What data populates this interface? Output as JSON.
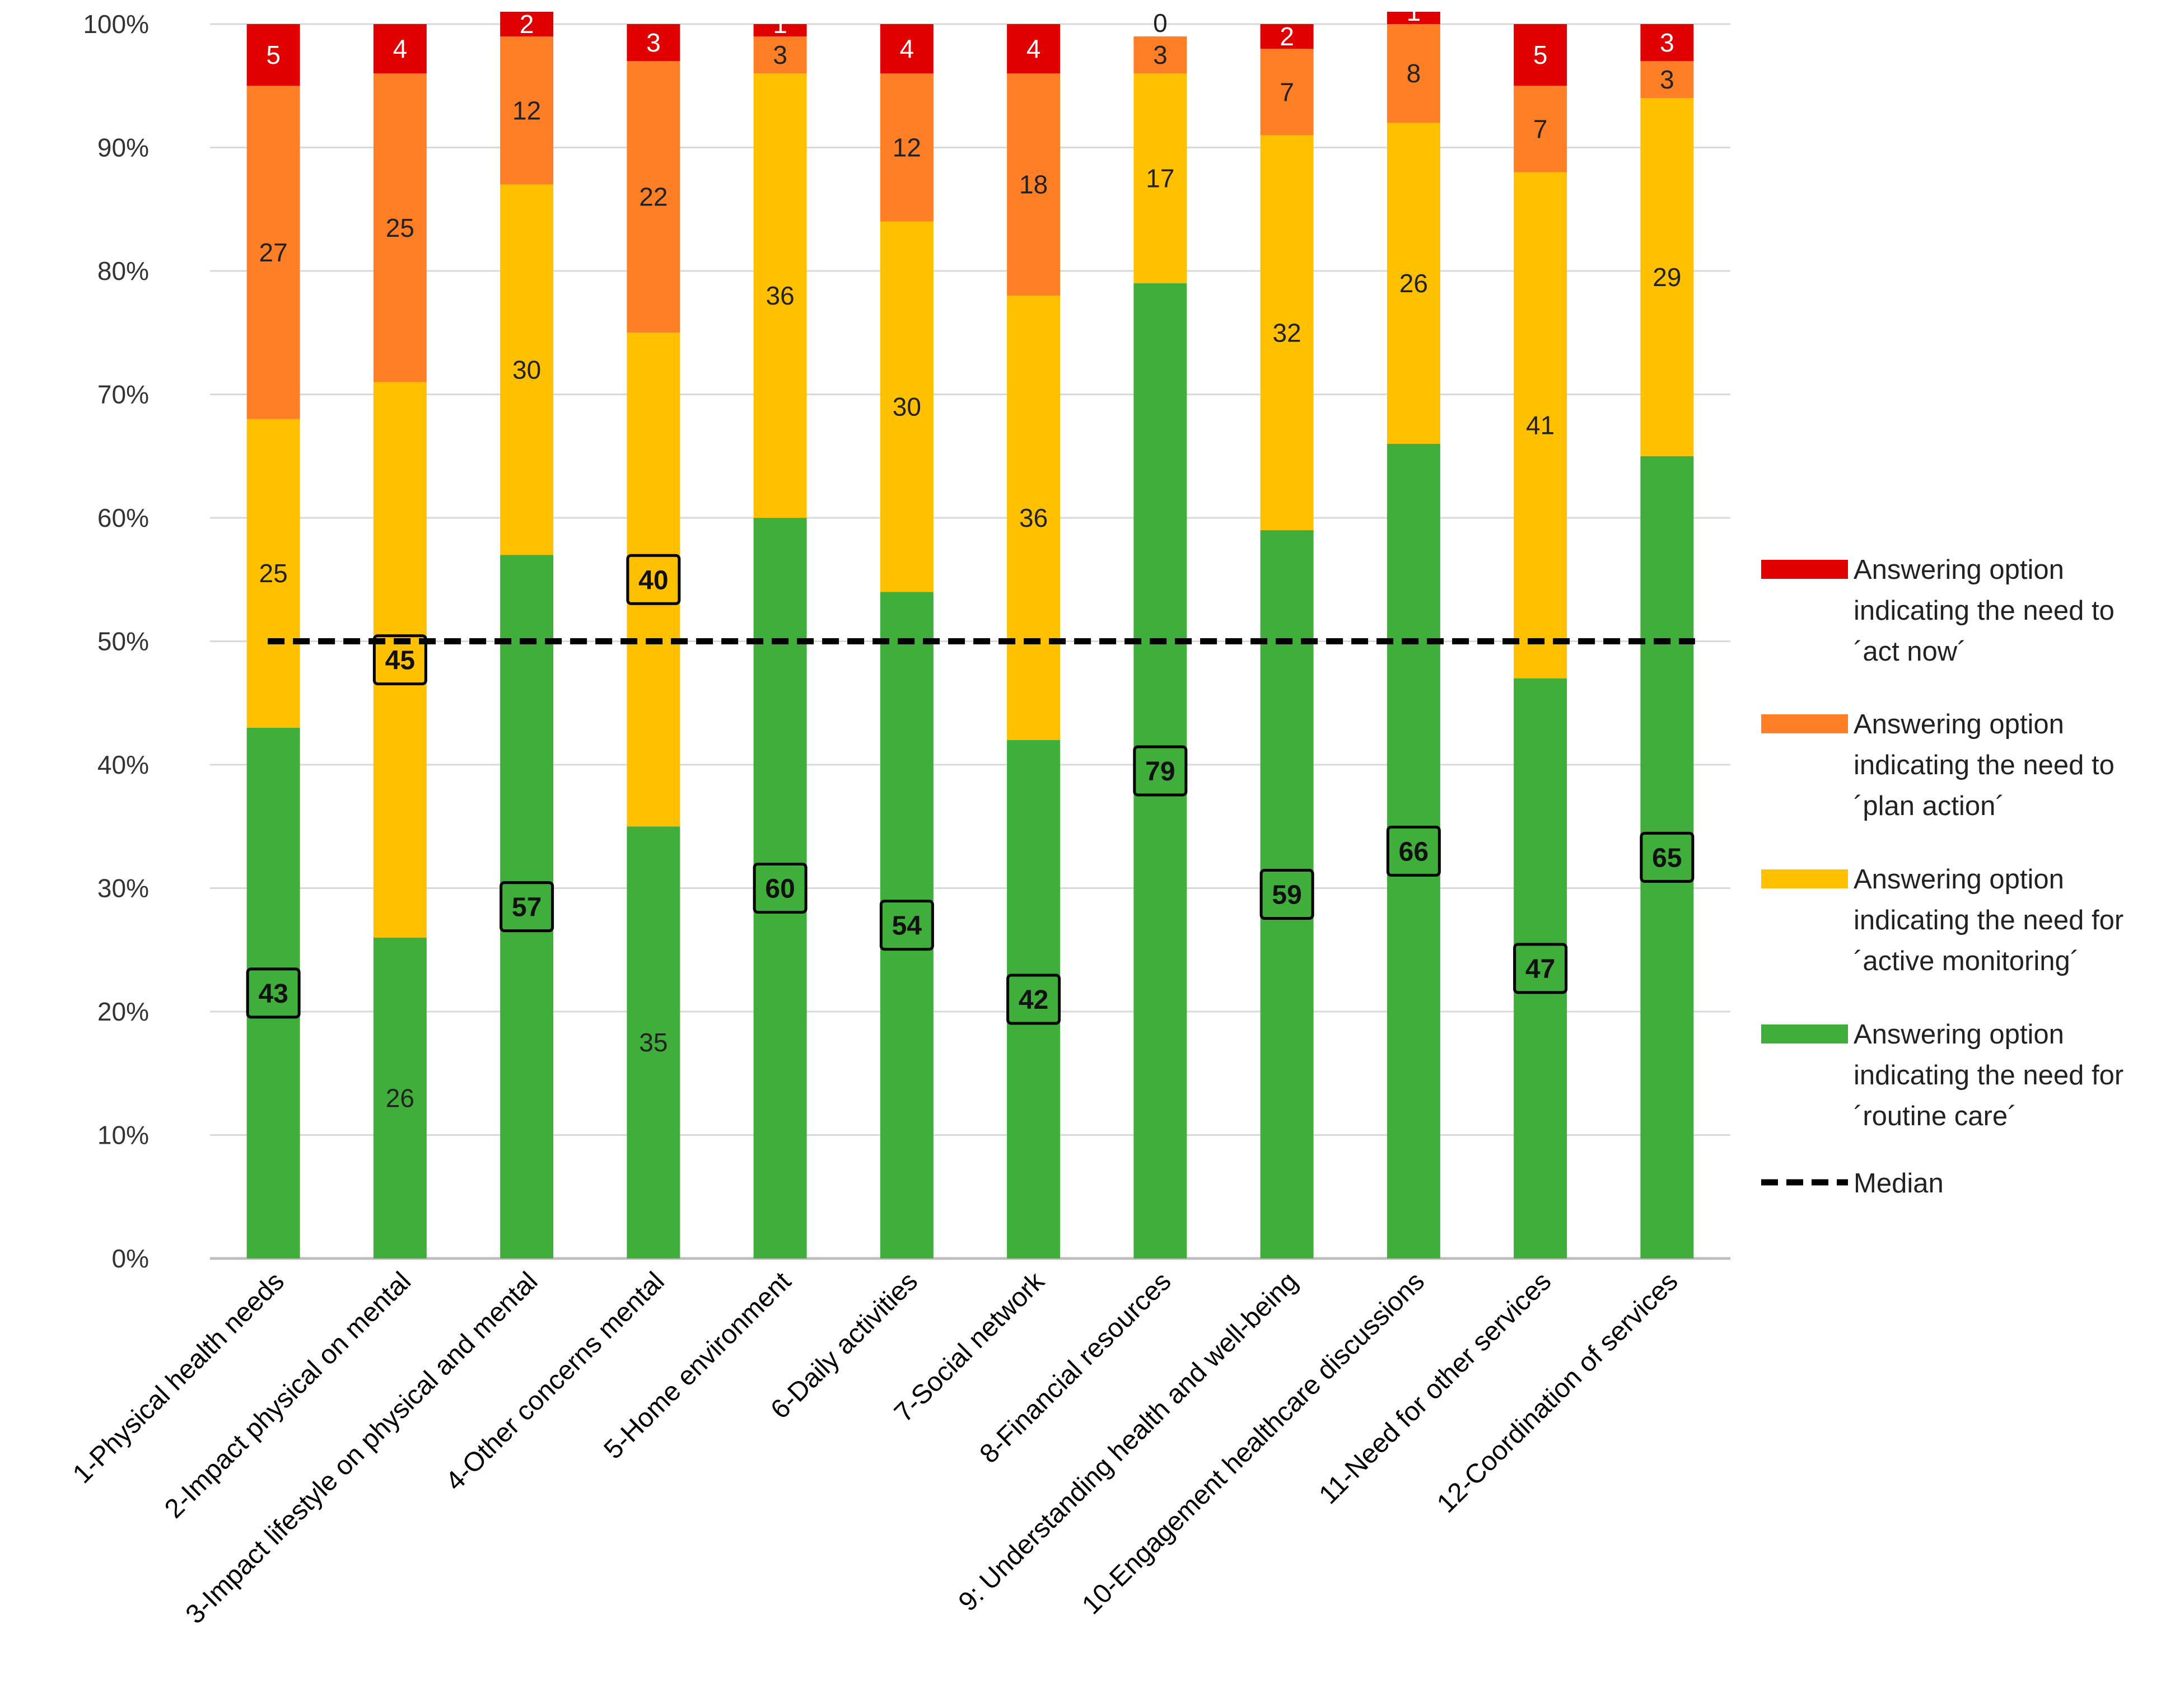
{
  "chart_data": {
    "type": "bar",
    "stacked": true,
    "percent": true,
    "title": "",
    "xlabel": "",
    "ylabel": "",
    "ylim": [
      0,
      100
    ],
    "yticks": [
      "0%",
      "10%",
      "20%",
      "30%",
      "40%",
      "50%",
      "60%",
      "70%",
      "80%",
      "90%",
      "100%"
    ],
    "grid": true,
    "legend_position": "right",
    "categories": [
      "1-Physical health needs",
      "2-Impact physical on mental",
      "3-Impact lifestyle on physical and mental",
      "4-Other concerns mental",
      "5-Home environment",
      "6-Daily activities",
      "7-Social network",
      "8-Financial resources",
      "9: Understanding health and well-being",
      "10-Engagement healthcare discussions",
      "11-Need for other services",
      "12-Coordination of services"
    ],
    "series": [
      {
        "name": "Answering option indicating the need for ´routine care´",
        "legend_lines": [
          "Answering option",
          "indicating the need for",
          "´routine care´"
        ],
        "color": "#3FAE3A",
        "values": [
          43,
          26,
          57,
          35,
          60,
          54,
          42,
          79,
          59,
          66,
          47,
          65
        ],
        "value_labels": [
          "43",
          "26",
          "57",
          "35",
          "60",
          "54",
          "42",
          "79",
          "59",
          "66",
          "47",
          "65"
        ]
      },
      {
        "name": "Answering option indicating the need for ´active monitoring´",
        "legend_lines": [
          "Answering option",
          "indicating the need for",
          "´active monitoring´"
        ],
        "color": "#FFC000",
        "values": [
          25,
          45,
          30,
          40,
          36,
          30,
          36,
          17,
          32,
          26,
          41,
          29
        ],
        "value_labels": [
          "25",
          "45",
          "30",
          "40",
          "36",
          "30",
          "36",
          "17",
          "32",
          "26",
          "41",
          "29"
        ]
      },
      {
        "name": "Answering option indicating the need to ´plan action´",
        "legend_lines": [
          "Answering option",
          "indicating the need to",
          "´plan action´"
        ],
        "color": "#FF7F27",
        "values": [
          27,
          25,
          12,
          22,
          3,
          12,
          18,
          3,
          7,
          8,
          7,
          3
        ],
        "value_labels": [
          "27",
          "25",
          "12",
          "22",
          "3",
          "12",
          "18",
          "3",
          "7",
          "8",
          "7",
          "3"
        ]
      },
      {
        "name": "Answering option indicating the need to ´act now´",
        "legend_lines": [
          "Answering option",
          "indicating the need to",
          "´act now´"
        ],
        "color": "#E00000",
        "values": [
          5,
          4,
          2,
          3,
          1,
          4,
          4,
          0,
          2,
          1,
          5,
          3
        ],
        "value_labels": [
          "5",
          "4",
          "2",
          "3",
          "1",
          "4",
          "4",
          "0",
          "2",
          "1",
          "5",
          "3"
        ]
      }
    ],
    "median_line": {
      "name": "Median",
      "value": 50,
      "color": "#000000"
    },
    "boxed_series_per_category": [
      "routine",
      "active",
      "routine",
      "active",
      "routine",
      "routine",
      "routine",
      "routine",
      "routine",
      "routine",
      "routine",
      "routine"
    ]
  }
}
